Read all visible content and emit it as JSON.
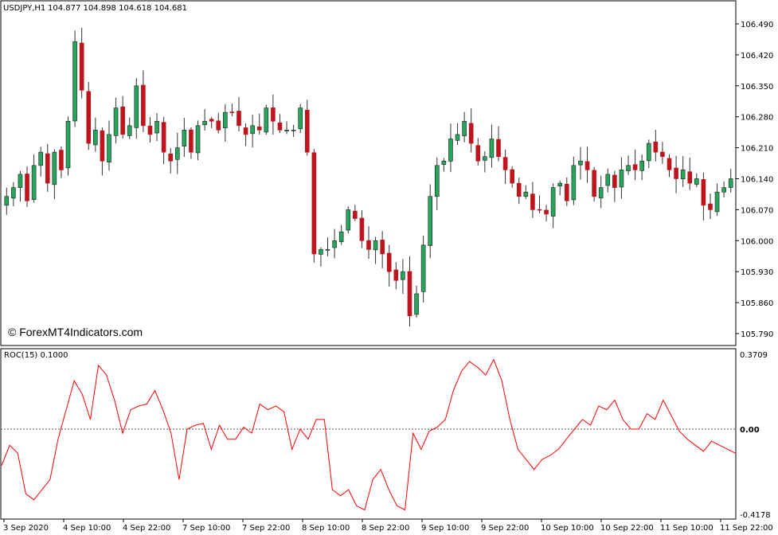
{
  "header": {
    "symbol_info": "USDJPY,H1",
    "ohlc": "104.877 104.898 104.618 104.681"
  },
  "watermark": "© ForexMT4Indicators.com",
  "indicator": {
    "label": "ROC(15) 0.1000",
    "axis_top": "0.3709",
    "axis_zero": "0.00",
    "axis_bottom": "-0.4178"
  },
  "colors": {
    "bull": "#26a65b",
    "bull_border": "#1f1f1f",
    "bear": "#c0141c",
    "wick": "#333333",
    "roc_line": "#ff0000",
    "zero_line": "#555555",
    "frame": "#000000"
  },
  "chart_data": [
    {
      "type": "candlestick",
      "title": "USDJPY,H1",
      "price_ticks": [
        "106.490",
        "106.420",
        "106.350",
        "106.280",
        "106.210",
        "106.140",
        "106.070",
        "106.000",
        "105.930",
        "105.860",
        "105.790"
      ],
      "ylim": [
        105.775,
        106.535
      ],
      "time_labels": [
        "3 Sep 2020",
        "4 Sep 10:00",
        "4 Sep 22:00",
        "7 Sep 10:00",
        "7 Sep 22:00",
        "8 Sep 10:00",
        "8 Sep 22:00",
        "9 Sep 10:00",
        "9 Sep 22:00",
        "10 Sep 10:00",
        "10 Sep 22:00",
        "11 Sep 10:00",
        "11 Sep 22:00"
      ],
      "close_path": [
        106.1,
        106.12,
        106.15,
        106.09,
        106.17,
        106.2,
        106.13,
        106.2,
        106.16,
        106.27,
        106.45,
        106.34,
        106.22,
        106.25,
        106.18,
        106.24,
        106.3,
        106.24,
        106.26,
        106.35,
        106.26,
        106.24,
        106.27,
        106.2,
        106.18,
        106.21,
        106.25,
        106.2,
        106.26,
        106.27,
        106.27,
        106.25,
        106.29,
        106.29,
        106.26,
        106.24,
        106.26,
        106.25,
        106.3,
        106.27,
        106.25,
        106.25,
        106.25,
        106.3,
        106.2,
        105.97,
        105.98,
        105.98,
        106.0,
        106.02,
        106.07,
        106.05,
        106.0,
        105.98,
        106.0,
        105.97,
        105.93,
        105.91,
        105.93,
        105.83,
        105.88,
        105.99,
        106.1,
        106.17,
        106.18,
        106.23,
        106.24,
        106.27,
        106.22,
        106.18,
        106.19,
        106.23,
        106.19,
        106.16,
        106.13,
        106.1,
        106.11,
        106.07,
        106.07,
        106.06,
        106.12,
        106.13,
        106.09,
        106.17,
        106.18,
        106.16,
        106.1,
        106.12,
        106.15,
        106.12,
        106.16,
        106.17,
        106.16,
        106.18,
        106.22,
        106.2,
        106.19,
        106.16,
        106.14,
        106.16,
        106.13,
        106.14,
        106.08,
        106.07,
        106.11,
        106.12,
        106.14
      ]
    },
    {
      "type": "line",
      "title": "ROC(15) 0.1000",
      "ylim": [
        -0.4178,
        0.3709
      ],
      "zero_level": 0.0,
      "values": [
        -0.18,
        -0.08,
        -0.12,
        -0.32,
        -0.35,
        -0.3,
        -0.25,
        -0.05,
        0.1,
        0.25,
        0.18,
        0.05,
        0.33,
        0.28,
        0.15,
        -0.02,
        0.1,
        0.12,
        0.13,
        0.2,
        0.1,
        -0.02,
        -0.25,
        0.0,
        0.02,
        0.03,
        -0.1,
        0.02,
        -0.05,
        -0.05,
        0.01,
        -0.02,
        0.13,
        0.1,
        0.12,
        0.09,
        -0.1,
        0.0,
        -0.05,
        0.05,
        0.05,
        -0.3,
        -0.33,
        -0.3,
        -0.38,
        -0.4,
        -0.25,
        -0.2,
        -0.3,
        -0.38,
        -0.4,
        -0.02,
        -0.1,
        -0.01,
        0.01,
        0.05,
        0.2,
        0.3,
        0.35,
        0.32,
        0.28,
        0.36,
        0.25,
        0.05,
        -0.1,
        -0.15,
        -0.2,
        -0.15,
        -0.13,
        -0.1,
        -0.05,
        0.0,
        0.05,
        0.02,
        0.12,
        0.1,
        0.15,
        0.05,
        0.0,
        0.0,
        0.08,
        0.05,
        0.15,
        0.07,
        -0.01,
        -0.05,
        -0.08,
        -0.11,
        -0.06,
        -0.08,
        -0.1,
        -0.12
      ]
    }
  ]
}
